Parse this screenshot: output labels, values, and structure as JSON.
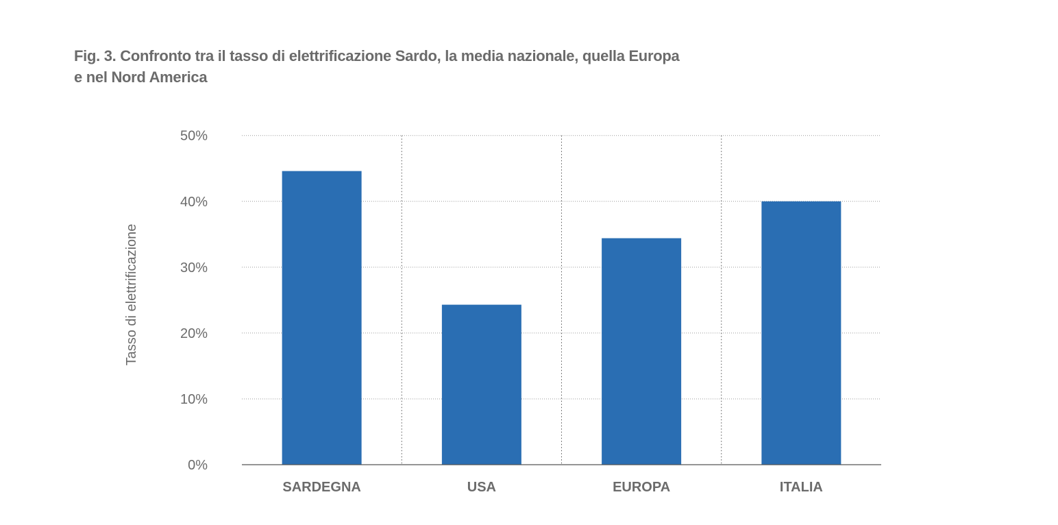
{
  "chart_data": {
    "type": "bar",
    "title_line1": "Fig. 3. Confronto tra il tasso di elettrificazione Sardo, la media nazionale, quella Europa",
    "title_line2": "e nel Nord America",
    "categories": [
      "SARDEGNA",
      "USA",
      "EUROPA",
      "ITALIA"
    ],
    "values": [
      44.6,
      24.3,
      34.4,
      40.0
    ],
    "xlabel": "",
    "ylabel": "Tasso di elettrificazione",
    "ylim": [
      0,
      50
    ],
    "yticks": [
      0,
      10,
      20,
      30,
      40,
      50
    ],
    "ytick_labels": [
      "0%",
      "10%",
      "20%",
      "30%",
      "40%",
      "50%"
    ],
    "grid": true,
    "bar_color": "#2a6eb3"
  }
}
